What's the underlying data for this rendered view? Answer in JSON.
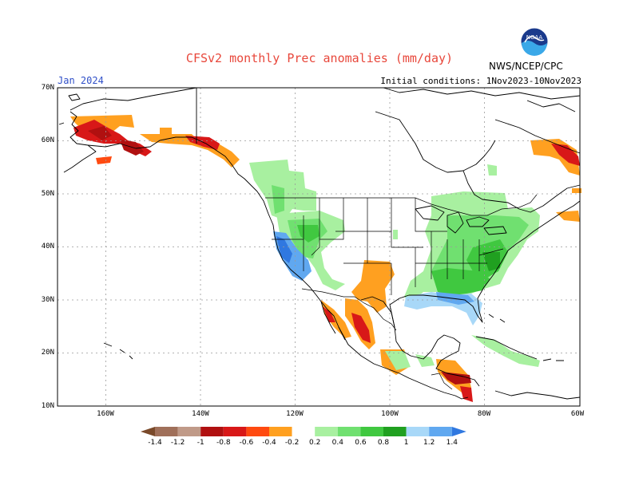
{
  "header": {
    "title": "CFSv2 monthly Prec anomalies (mm/day)",
    "valid_month": "Jan 2024",
    "initial_conditions": "Initial conditions: 1Nov2023-10Nov2023",
    "agency": "NWS/NCEP/CPC",
    "logo_text": "NOAA"
  },
  "axes": {
    "lat_labels": [
      "70N",
      "60N",
      "50N",
      "40N",
      "30N",
      "20N",
      "10N"
    ],
    "lon_labels": [
      "160W",
      "140W",
      "120W",
      "100W",
      "80W",
      "60W"
    ]
  },
  "legend": {
    "labels": [
      "-1.4",
      "-1.2",
      "-1",
      "-0.8",
      "-0.6",
      "-0.4",
      "-0.2",
      "0.2",
      "0.4",
      "0.6",
      "0.8",
      "1",
      "1.2",
      "1.4"
    ],
    "colors": [
      "#7a4a2a",
      "#a0705a",
      "#c09a88",
      "#b01010",
      "#d81818",
      "#ff4a10",
      "#ffa020",
      "#ffffff",
      "#a8f0a0",
      "#70e070",
      "#40c840",
      "#20a020",
      "#a8d8f8",
      "#60a8f0",
      "#3078e0"
    ]
  },
  "colors": {
    "coast": "#000000",
    "grid": "#9a9a9a",
    "title": "#e8473b",
    "valid": "#3050c8"
  }
}
